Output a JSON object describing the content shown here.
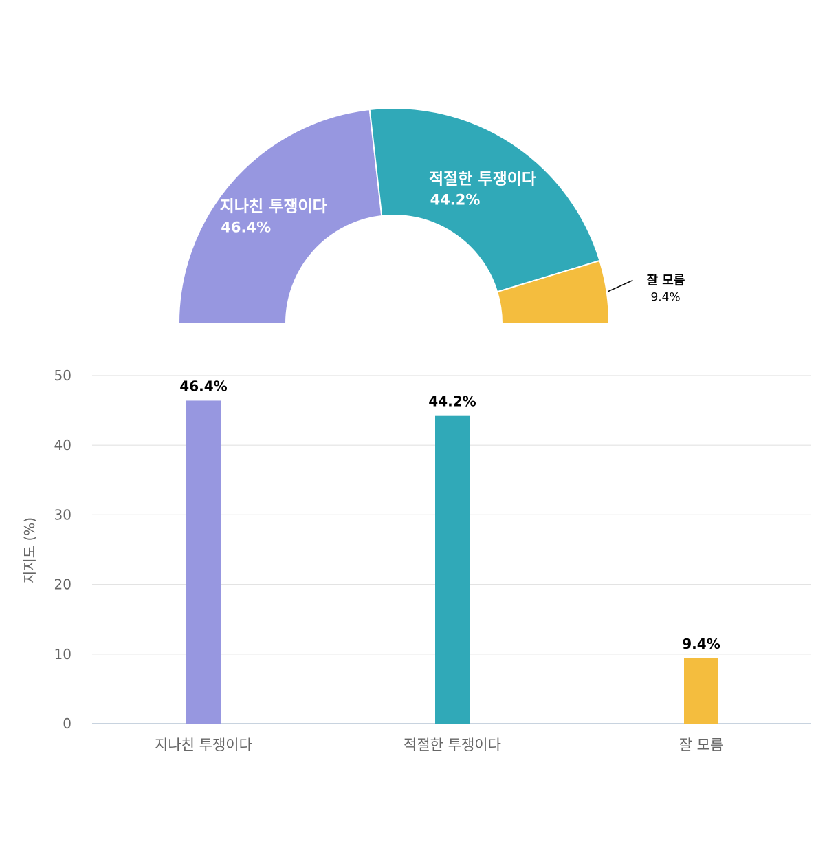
{
  "chart_data": [
    {
      "type": "pie",
      "variant": "semi-donut",
      "slices": [
        {
          "label": "지나친 투쟁이다",
          "value": 46.4,
          "value_label": "46.4%",
          "color": "#9797E0"
        },
        {
          "label": "적절한 투쟁이다",
          "value": 44.2,
          "value_label": "44.2%",
          "color": "#30A9B8"
        },
        {
          "label": "잘 모름",
          "value": 9.4,
          "value_label": "9.4%",
          "color": "#F4BD3E"
        }
      ]
    },
    {
      "type": "bar",
      "categories": [
        "지나친 투쟁이다",
        "적절한 투쟁이다",
        "잘 모름"
      ],
      "values": [
        46.4,
        44.2,
        9.4
      ],
      "value_labels": [
        "46.4%",
        "44.2%",
        "9.4%"
      ],
      "colors": [
        "#9797E0",
        "#30A9B8",
        "#F4BD3E"
      ],
      "ylabel": "지지도 (%)",
      "ylim": [
        0,
        50
      ],
      "yticks": [
        "0",
        "10",
        "20",
        "30",
        "40",
        "50"
      ],
      "grid": true
    }
  ]
}
